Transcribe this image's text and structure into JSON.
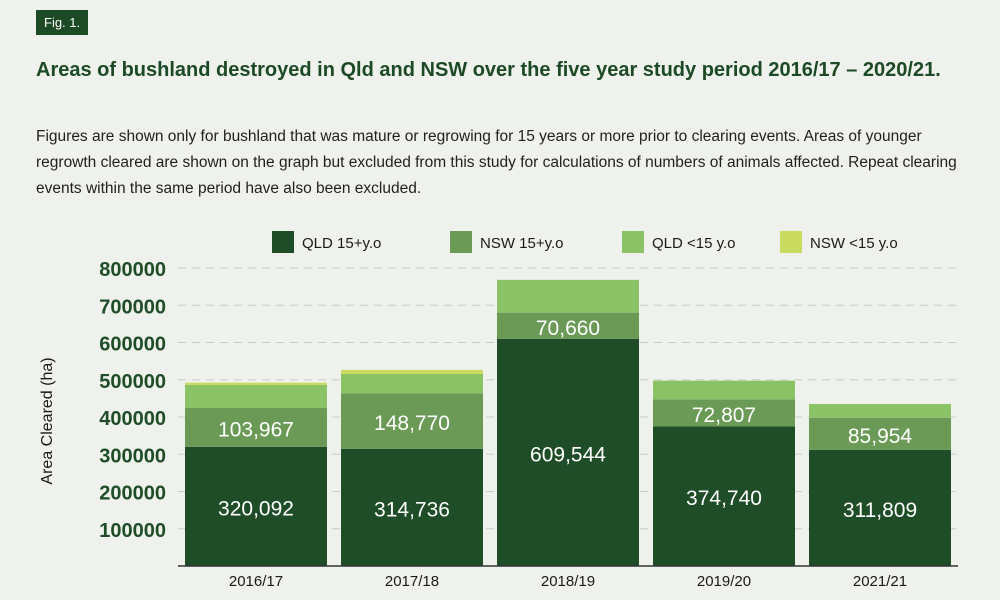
{
  "figure_label": "Fig. 1.",
  "title": "Areas of bushland destroyed in Qld and NSW over the five year study period 2016/17 – 2020/21.",
  "subtitle": "Figures are shown only for bushland that was mature or regrowing for 15 years or more prior to clearing events. Areas of younger regrowth cleared are shown on the graph but excluded from this study for calculations of numbers of animals affected. Repeat clearing events within the same period have also been excluded.",
  "chart_data": {
    "type": "bar",
    "stacked": true,
    "categories": [
      "2016/17",
      "2017/18",
      "2018/19",
      "2019/20",
      "2021/21"
    ],
    "series": [
      {
        "name": "QLD 15+y.o",
        "color": "#1f4d27",
        "values": [
          320092,
          314736,
          609544,
          374740,
          311809
        ],
        "labels": [
          "320,092",
          "314,736",
          "609,544",
          "374,740",
          "311,809"
        ]
      },
      {
        "name": "NSW 15+y.o",
        "color": "#6a9a55",
        "values": [
          103967,
          148770,
          70660,
          72807,
          85954
        ],
        "labels": [
          "103,967",
          "148,770",
          "70,660",
          "72,807",
          "85,954"
        ]
      },
      {
        "name": "QLD <15 y.o",
        "color": "#8cc266",
        "values": [
          62000,
          52000,
          88000,
          50000,
          37000
        ],
        "labels": []
      },
      {
        "name": "NSW <15 y.o",
        "color": "#c9dc5f",
        "values": [
          6000,
          11000,
          0,
          0,
          0
        ],
        "labels": []
      }
    ],
    "ylabel": "Area Cleared (ha)",
    "ylim": [
      0,
      800000
    ],
    "yticks": [
      "100000",
      "200000",
      "300000",
      "400000",
      "500000",
      "600000",
      "700000",
      "800000"
    ],
    "ytick_values": [
      100000,
      200000,
      300000,
      400000,
      500000,
      600000,
      700000,
      800000
    ],
    "grid": true,
    "legend_position": "top"
  }
}
